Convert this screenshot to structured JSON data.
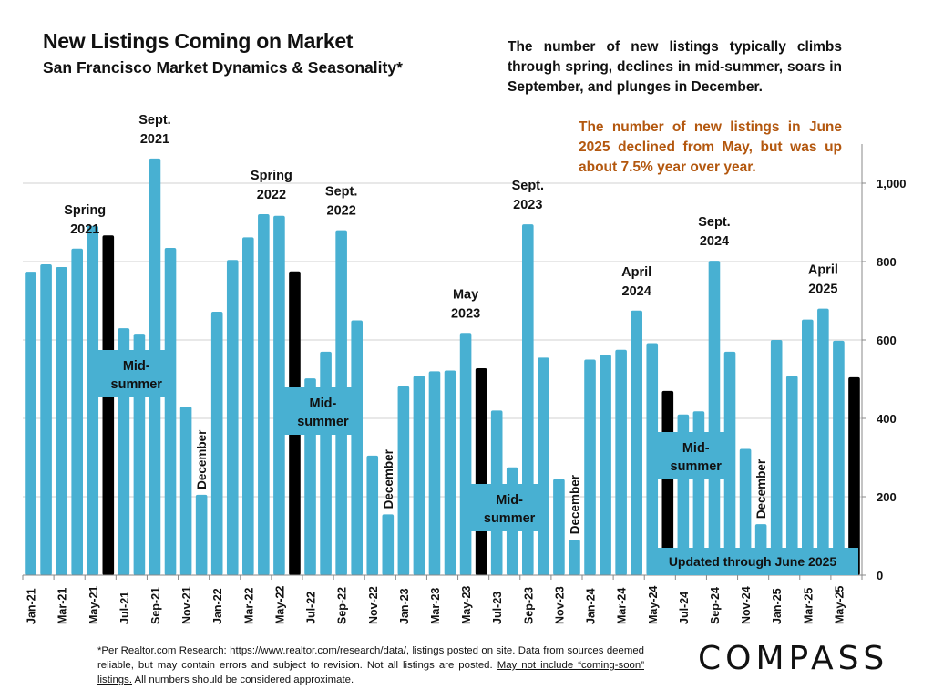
{
  "header": {
    "title": "New Listings Coming on Market",
    "subtitle": "San Francisco Market Dynamics & Seasonality*"
  },
  "description": "The number of new listings typically climbs through spring, declines in mid-summer, soars in September, and plunges in December.",
  "highlight": {
    "text": "The number of new listings in June 2025 declined from May, but was up about 7.5% year over year.",
    "color": "#b3570e"
  },
  "footnote": {
    "line_text": "*Per Realtor.com Research:  https://www.realtor.com/research/data/, listings posted on site. Data from sources deemed reliable, but may contain errors and subject to revision. Not all listings are posted.",
    "underlined": "May not include “coming-soon” listings.",
    "tail": "All numbers should be considered approximate."
  },
  "logo": {
    "text": "COMPASS"
  },
  "colors": {
    "bar": "#48b0d2",
    "highlight_bar": "#000000",
    "grid": "#d0d0d0",
    "callout_text": "#b3570e"
  },
  "chart_data": {
    "type": "bar",
    "title": "New Listings Coming on Market",
    "subtitle": "San Francisco Market Dynamics & Seasonality*",
    "xlabel": "",
    "ylabel": "",
    "ylim": [
      0,
      1100
    ],
    "y_ticks": [
      0,
      200,
      400,
      600,
      800,
      1000
    ],
    "y_tick_labels": [
      "0",
      "200",
      "400",
      "600",
      "800",
      "1,000"
    ],
    "y_axis_position": "right",
    "grid": true,
    "legend": "none",
    "categories": [
      "Jan-21",
      "Feb-21",
      "Mar-21",
      "Apr-21",
      "May-21",
      "Jun-21",
      "Jul-21",
      "Aug-21",
      "Sep-21",
      "Oct-21",
      "Nov-21",
      "Dec-21",
      "Jan-22",
      "Feb-22",
      "Mar-22",
      "Apr-22",
      "May-22",
      "Jun-22",
      "Jul-22",
      "Aug-22",
      "Sep-22",
      "Oct-22",
      "Nov-22",
      "Dec-22",
      "Jan-23",
      "Feb-23",
      "Mar-23",
      "Apr-23",
      "May-23",
      "Jun-23",
      "Jul-23",
      "Aug-23",
      "Sep-23",
      "Oct-23",
      "Nov-23",
      "Dec-23",
      "Jan-24",
      "Feb-24",
      "Mar-24",
      "Apr-24",
      "May-24",
      "Jun-24",
      "Jul-24",
      "Aug-24",
      "Sep-24",
      "Oct-24",
      "Nov-24",
      "Dec-24",
      "Jan-25",
      "Feb-25",
      "Mar-25",
      "Apr-25",
      "May-25",
      "Jun-25"
    ],
    "x_tick_labels": [
      "Jan-21",
      "Mar-21",
      "May-21",
      "Jul-21",
      "Sep-21",
      "Nov-21",
      "Jan-22",
      "Mar-22",
      "May-22",
      "Jul-22",
      "Sep-22",
      "Nov-22",
      "Jan-23",
      "Mar-23",
      "May-23",
      "Jul-23",
      "Sep-23",
      "Nov-23",
      "Jan-24",
      "Mar-24",
      "May-24",
      "Jul-24",
      "Sep-24",
      "Nov-24",
      "Jan-25",
      "Mar-25",
      "May-25"
    ],
    "values": [
      774,
      793,
      786,
      833,
      891,
      867,
      630,
      616,
      1063,
      835,
      430,
      205,
      672,
      804,
      862,
      921,
      917,
      775,
      502,
      570,
      880,
      650,
      305,
      155,
      482,
      508,
      520,
      522,
      618,
      528,
      420,
      275,
      895,
      555,
      245,
      90,
      550,
      562,
      575,
      675,
      592,
      470,
      410,
      418,
      802,
      570,
      322,
      130,
      600,
      508,
      652,
      680,
      598,
      505
    ],
    "highlighted_categories": [
      "Jun-21",
      "Jun-22",
      "Jun-23",
      "Jun-24",
      "Jun-25"
    ],
    "annotations": [
      {
        "text": [
          "Spring",
          "2021"
        ],
        "category": "Apr-21",
        "kind": "label"
      },
      {
        "text": [
          "Sept.",
          "2021"
        ],
        "category": "Sep-21",
        "kind": "label"
      },
      {
        "text": [
          "Spring",
          "2022"
        ],
        "category": "Apr-22",
        "kind": "label"
      },
      {
        "text": [
          "Sept.",
          "2022"
        ],
        "category": "Sep-22",
        "kind": "label"
      },
      {
        "text": [
          "May",
          "2023"
        ],
        "category": "May-23",
        "kind": "label"
      },
      {
        "text": [
          "Sept.",
          "2023"
        ],
        "category": "Sep-23",
        "kind": "label"
      },
      {
        "text": [
          "April",
          "2024"
        ],
        "category": "Apr-24",
        "kind": "label"
      },
      {
        "text": [
          "Sept.",
          "2024"
        ],
        "category": "Sep-24",
        "kind": "label"
      },
      {
        "text": [
          "April",
          "2025"
        ],
        "category": "Apr-25",
        "kind": "label"
      },
      {
        "text": [
          "December"
        ],
        "category": "Dec-21",
        "kind": "vertical"
      },
      {
        "text": [
          "December"
        ],
        "category": "Dec-22",
        "kind": "vertical"
      },
      {
        "text": [
          "December"
        ],
        "category": "Dec-23",
        "kind": "vertical"
      },
      {
        "text": [
          "December"
        ],
        "category": "Dec-24",
        "kind": "vertical"
      },
      {
        "text": [
          "Mid-",
          "summer"
        ],
        "category": "Jul-21",
        "kind": "box"
      },
      {
        "text": [
          "Mid-",
          "summer"
        ],
        "category": "Jul-22",
        "kind": "box"
      },
      {
        "text": [
          "Mid-",
          "summer"
        ],
        "category": "Jul-23",
        "kind": "box"
      },
      {
        "text": [
          "Mid-",
          "summer"
        ],
        "category": "Jul-24",
        "kind": "box"
      },
      {
        "text": [
          "Updated through June 2025"
        ],
        "category": "Jun-25",
        "kind": "banner"
      }
    ]
  }
}
